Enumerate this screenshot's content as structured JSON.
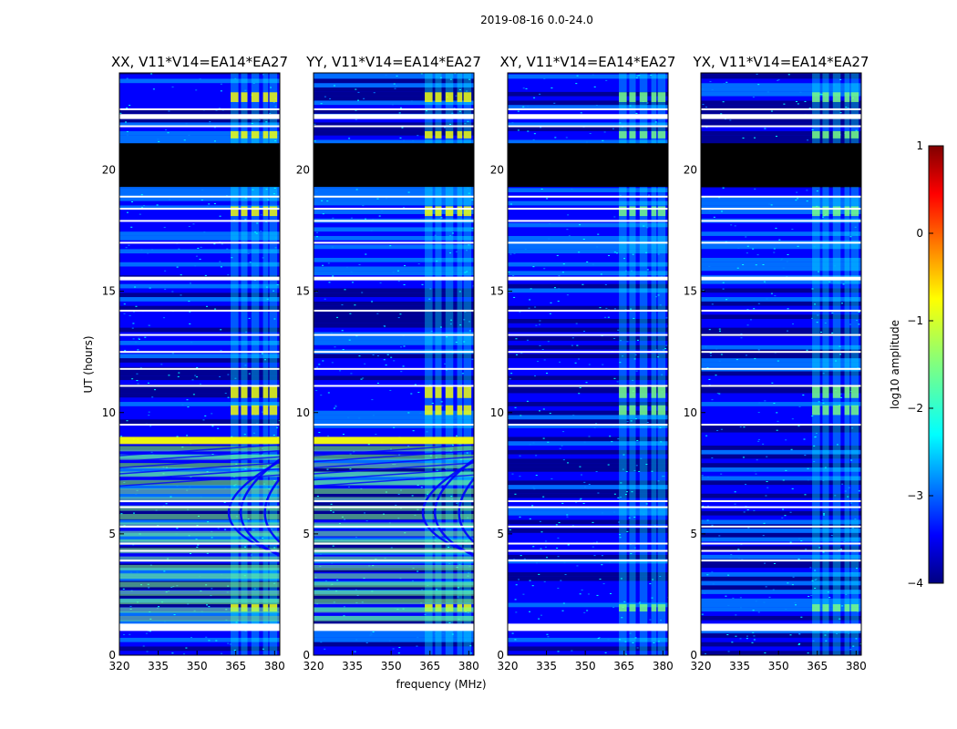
{
  "chart_data": {
    "type": "heatmap",
    "title": "2019-08-16 0.0-24.0",
    "xlabel": "frequency (MHz)",
    "ylabel": "UT (hours)",
    "xlim": [
      320,
      382
    ],
    "ylim": [
      0,
      24
    ],
    "x_ticks": [
      "320",
      "335",
      "350",
      "365",
      "380"
    ],
    "y_ticks": [
      "0",
      "5",
      "10",
      "15",
      "20"
    ],
    "panels": [
      {
        "title": "XX, V11*V14=EA14*EA27",
        "sweeps": true,
        "blank_hours": [
          19.3,
          21.1
        ]
      },
      {
        "title": "YY, V11*V14=EA14*EA27",
        "sweeps": true,
        "blank_hours": [
          19.3,
          21.1
        ]
      },
      {
        "title": "XY, V11*V14=EA14*EA27",
        "sweeps": false,
        "blank_hours": [
          19.3,
          21.1
        ]
      },
      {
        "title": "YX, V11*V14=EA14*EA27",
        "sweeps": false,
        "blank_hours": [
          19.3,
          21.1
        ]
      }
    ],
    "bright_band_mhz": [
      363,
      381
    ],
    "gap_hours": [
      1.1,
      1.2,
      3.9,
      4.3,
      4.6,
      5.3,
      6.1,
      6.35,
      9.5,
      11.1,
      11.8,
      12.5,
      13.2,
      14.2,
      15.5,
      17.0,
      17.9,
      18.4,
      18.9,
      21.8,
      22.5
    ],
    "colorbar": {
      "label": "log10 amplitude",
      "range": [
        -4,
        1
      ],
      "ticks": [
        "1",
        "0",
        "−1",
        "−2",
        "−3",
        "−4"
      ]
    },
    "colormap": [
      "#000080",
      "#0000ff",
      "#0080ff",
      "#00ffff",
      "#80ff80",
      "#ffff00",
      "#ff8000",
      "#ff0000",
      "#800000"
    ]
  }
}
